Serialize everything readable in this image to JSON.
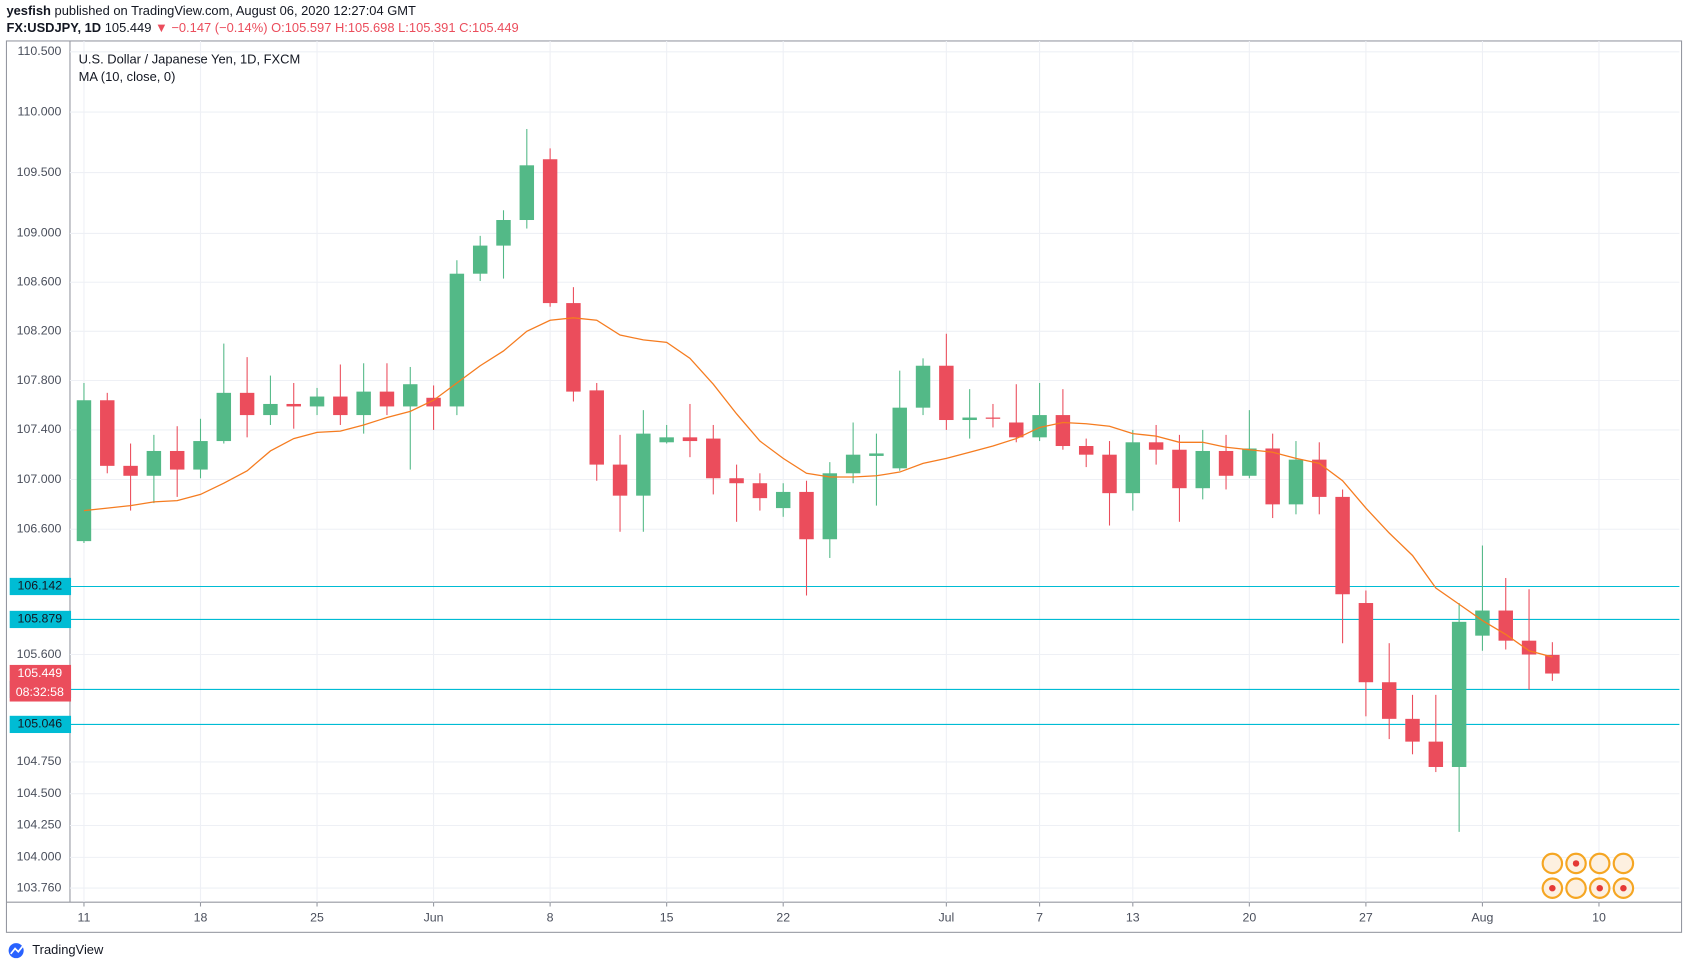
{
  "header": {
    "author": "yesfish",
    "published": "published on TradingView.com, August 06, 2020 12:27:04 GMT",
    "symbol": "FX:USDJPY, 1D",
    "last": "105.449",
    "change": "▼ −0.147 (−0.14%)",
    "open": "O:105.597",
    "high": "H:105.698",
    "low": "L:105.391",
    "close": "C:105.449"
  },
  "footer": {
    "brand": "TradingView"
  },
  "chart_data": {
    "type": "candlestick",
    "title": "U.S. Dollar / Japanese Yen, 1D, FXCM",
    "log_scale": true,
    "grid": true,
    "up_color": "#53b987",
    "down_color": "#eb4d5c",
    "x": [
      0,
      1,
      2,
      3,
      4,
      5,
      6,
      7,
      8,
      9,
      10,
      11,
      12,
      13,
      14,
      15,
      16,
      17,
      18,
      19,
      20,
      21,
      22,
      23,
      24,
      25,
      26,
      27,
      28,
      29,
      30,
      31,
      32,
      33,
      34,
      35,
      36,
      37,
      38,
      39,
      40,
      41,
      42,
      43,
      44,
      45,
      46,
      47,
      48,
      49,
      50,
      51,
      52,
      53,
      54,
      55,
      56,
      57,
      58,
      59,
      60,
      61,
      62,
      63
    ],
    "open": [
      106.505,
      107.64,
      107.11,
      107.03,
      107.23,
      107.08,
      107.31,
      107.7,
      107.52,
      107.61,
      107.59,
      107.67,
      107.52,
      107.71,
      107.59,
      107.66,
      107.59,
      108.67,
      108.9,
      109.11,
      109.61,
      108.43,
      107.72,
      107.12,
      106.87,
      107.3,
      107.34,
      107.33,
      107.01,
      106.97,
      106.77,
      106.9,
      106.52,
      107.05,
      107.19,
      107.09,
      107.58,
      107.92,
      107.48,
      107.5,
      107.46,
      107.34,
      107.52,
      107.27,
      107.2,
      106.89,
      107.3,
      107.24,
      106.93,
      107.23,
      107.03,
      107.25,
      106.8,
      107.16,
      106.86,
      106.01,
      105.38,
      105.09,
      104.91,
      104.71,
      105.75,
      105.95,
      105.71,
      105.597
    ],
    "high": [
      107.78,
      107.7,
      107.29,
      107.36,
      107.43,
      107.49,
      108.1,
      107.99,
      107.84,
      107.78,
      107.74,
      107.93,
      107.94,
      107.94,
      107.91,
      107.76,
      108.78,
      108.98,
      109.19,
      109.86,
      109.7,
      108.56,
      107.78,
      107.36,
      107.56,
      107.44,
      107.61,
      107.44,
      107.12,
      107.05,
      106.97,
      106.99,
      107.14,
      107.46,
      107.37,
      107.88,
      107.98,
      108.18,
      107.73,
      107.61,
      107.77,
      107.78,
      107.73,
      107.33,
      107.31,
      107.4,
      107.44,
      107.36,
      107.4,
      107.36,
      107.56,
      107.37,
      107.31,
      107.3,
      106.92,
      106.11,
      105.69,
      105.28,
      105.28,
      106.01,
      106.47,
      106.21,
      106.12,
      105.698
    ],
    "low": [
      106.49,
      107.05,
      106.75,
      106.81,
      106.86,
      107.01,
      107.29,
      107.34,
      107.44,
      107.41,
      107.52,
      107.44,
      107.37,
      107.52,
      107.08,
      107.4,
      107.52,
      108.61,
      108.63,
      109.04,
      108.4,
      107.63,
      106.99,
      106.58,
      106.58,
      107.29,
      107.18,
      106.88,
      106.66,
      106.75,
      106.7,
      106.07,
      106.37,
      106.97,
      106.79,
      107.07,
      107.52,
      107.4,
      107.33,
      107.42,
      107.3,
      107.31,
      107.24,
      107.1,
      106.63,
      106.75,
      107.12,
      106.66,
      106.84,
      106.92,
      107.01,
      106.69,
      106.72,
      106.72,
      105.69,
      105.11,
      104.93,
      104.81,
      104.67,
      104.2,
      105.63,
      105.64,
      105.32,
      105.391
    ],
    "close": [
      107.64,
      107.11,
      107.03,
      107.23,
      107.08,
      107.31,
      107.7,
      107.52,
      107.61,
      107.59,
      107.67,
      107.52,
      107.71,
      107.59,
      107.77,
      107.59,
      108.67,
      108.9,
      109.11,
      109.56,
      108.43,
      107.71,
      107.12,
      106.87,
      107.37,
      107.34,
      107.31,
      107.01,
      106.97,
      106.85,
      106.9,
      106.52,
      107.05,
      107.2,
      107.21,
      107.58,
      107.92,
      107.48,
      107.5,
      107.49,
      107.34,
      107.52,
      107.27,
      107.2,
      106.89,
      107.3,
      107.24,
      106.93,
      107.23,
      107.03,
      107.25,
      106.8,
      107.16,
      106.86,
      106.08,
      105.38,
      105.09,
      104.91,
      104.71,
      105.86,
      105.95,
      105.71,
      105.6,
      105.449
    ],
    "series": [
      {
        "name": "MA (10, close, 0)",
        "color": "#f57c20",
        "values": [
          106.75,
          106.77,
          106.79,
          106.82,
          106.83,
          106.88,
          106.97,
          107.07,
          107.23,
          107.33,
          107.38,
          107.39,
          107.44,
          107.5,
          107.55,
          107.64,
          107.78,
          107.92,
          108.04,
          108.2,
          108.29,
          108.31,
          108.29,
          108.17,
          108.13,
          108.11,
          107.98,
          107.77,
          107.53,
          107.31,
          107.17,
          107.05,
          107.02,
          107.02,
          107.03,
          107.06,
          107.13,
          107.17,
          107.22,
          107.27,
          107.33,
          107.42,
          107.46,
          107.45,
          107.43,
          107.37,
          107.35,
          107.3,
          107.3,
          107.26,
          107.24,
          107.22,
          107.17,
          107.13,
          106.99,
          106.77,
          106.57,
          106.39,
          106.13,
          106.0,
          105.87,
          105.76,
          105.63,
          105.58
        ]
      }
    ],
    "levels": [
      106.142,
      105.879,
      105.323,
      105.046
    ],
    "level_color": "#00bcd4",
    "last_price": 105.449,
    "countdown": "08:32:58",
    "xlim": [
      -0.6,
      68.45
    ],
    "xticks": [
      {
        "value": 0,
        "label": "11"
      },
      {
        "value": 5,
        "label": "18"
      },
      {
        "value": 10,
        "label": "25"
      },
      {
        "value": 15,
        "label": "Jun"
      },
      {
        "value": 20,
        "label": "8"
      },
      {
        "value": 25,
        "label": "15"
      },
      {
        "value": 30,
        "label": "22"
      },
      {
        "value": 37,
        "label": "Jul"
      },
      {
        "value": 41,
        "label": "7"
      },
      {
        "value": 45,
        "label": "13"
      },
      {
        "value": 50,
        "label": "20"
      },
      {
        "value": 55,
        "label": "27"
      },
      {
        "value": 60,
        "label": "Aug"
      },
      {
        "value": 65,
        "label": "10"
      }
    ],
    "ylim": [
      103.65,
      110.59
    ],
    "yticks": [
      {
        "value": 110.5,
        "label": "110.500"
      },
      {
        "value": 110,
        "label": "110.000"
      },
      {
        "value": 109.5,
        "label": "109.500"
      },
      {
        "value": 109,
        "label": "109.000"
      },
      {
        "value": 108.6,
        "label": "108.600"
      },
      {
        "value": 108.2,
        "label": "108.200"
      },
      {
        "value": 107.8,
        "label": "107.800"
      },
      {
        "value": 107.4,
        "label": "107.400"
      },
      {
        "value": 107,
        "label": "107.000"
      },
      {
        "value": 106.6,
        "label": "106.600"
      },
      {
        "value": 105.6,
        "label": "105.600"
      },
      {
        "value": 104.75,
        "label": "104.750"
      },
      {
        "value": 104.5,
        "label": "104.500"
      },
      {
        "value": 104.25,
        "label": "104.250"
      },
      {
        "value": 104,
        "label": "104.000"
      },
      {
        "value": 103.76,
        "label": "103.760"
      }
    ]
  }
}
